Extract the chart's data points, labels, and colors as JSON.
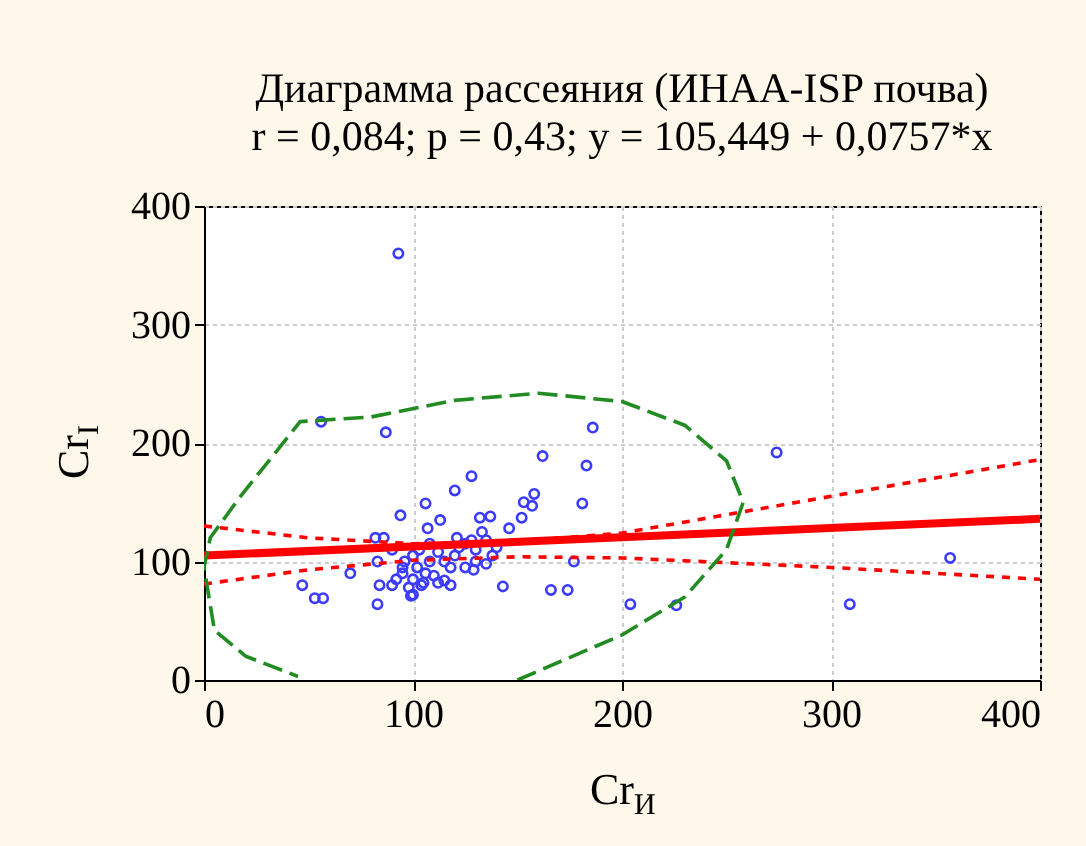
{
  "chart_data": {
    "type": "scatter",
    "title": "Диаграмма рассеяния (ИНАА-ISP почва)",
    "subtitle": "r = 0,084; p = 0,43;  y = 105,449 + 0,0757*x",
    "xlabel": "Cr$_{И}$",
    "ylabel": "Cr$_{I}$",
    "xlim": [
      0,
      400
    ],
    "ylim": [
      0,
      400
    ],
    "xticks": [
      0,
      100,
      200,
      300,
      400
    ],
    "yticks": [
      0,
      100,
      200,
      300,
      400
    ],
    "grid": true,
    "series": [
      {
        "color": "#3c3cff",
        "marker": "circle",
        "x": [
          93,
          56,
          87,
          186,
          274,
          357,
          309,
          226,
          204,
          166,
          174,
          177,
          181,
          183,
          162,
          47,
          53,
          57,
          70,
          83,
          83,
          84,
          82,
          86,
          94,
          106,
          99,
          107,
          113,
          120,
          128,
          129,
          143,
          121,
          132,
          137,
          146,
          152,
          153,
          158,
          157,
          90,
          92,
          95,
          98,
          100,
          102,
          104,
          106,
          108,
          110,
          112,
          96,
          100,
          103,
          108,
          112,
          115,
          118,
          120,
          122,
          125,
          128,
          130,
          133,
          135,
          138,
          140,
          90,
          95,
          100,
          105,
          115,
          118,
          125,
          130,
          135
        ],
        "values": [
          360,
          218,
          209,
          213,
          192,
          103,
          64,
          63,
          64,
          76,
          76,
          100,
          149,
          181,
          189,
          80,
          69,
          69,
          90,
          64,
          100,
          80,
          120,
          120,
          139,
          149,
          71,
          128,
          135,
          160,
          172,
          93,
          79,
          120,
          137,
          138,
          128,
          137,
          150,
          157,
          147,
          80,
          85,
          90,
          78,
          85,
          95,
          80,
          90,
          100,
          88,
          82,
          100,
          105,
          110,
          115,
          108,
          100,
          95,
          105,
          112,
          115,
          118,
          110,
          125,
          118,
          105,
          112,
          110,
          95,
          72,
          82,
          84,
          80,
          95,
          100,
          98
        ]
      },
      {
        "type": "line",
        "color": "#ff0000",
        "line_style": "solid",
        "x": [
          0,
          400
        ],
        "values": [
          105,
          136
        ]
      },
      {
        "type": "line",
        "color": "#ff0000",
        "line_style": "dotted",
        "x": [
          0,
          50,
          100,
          150,
          200,
          300,
          400
        ],
        "values": [
          130,
          120,
          115,
          117,
          124,
          155,
          186
        ]
      },
      {
        "type": "line",
        "color": "#ff0000",
        "line_style": "dotted",
        "x": [
          0,
          50,
          100,
          150,
          200,
          300,
          400
        ],
        "values": [
          81,
          93,
          101,
          104,
          103,
          95,
          85
        ]
      },
      {
        "type": "line",
        "color": "#228b22",
        "line_style": "dashed",
        "x": [
          150,
          200,
          230,
          250,
          258,
          250,
          230,
          200,
          160,
          120,
          80,
          46,
          17,
          3,
          0,
          5,
          20,
          45
        ],
        "values": [
          0,
          38,
          70,
          110,
          150,
          185,
          215,
          235,
          242,
          236,
          222,
          218,
          154,
          120,
          95,
          42,
          20,
          3
        ]
      }
    ]
  }
}
